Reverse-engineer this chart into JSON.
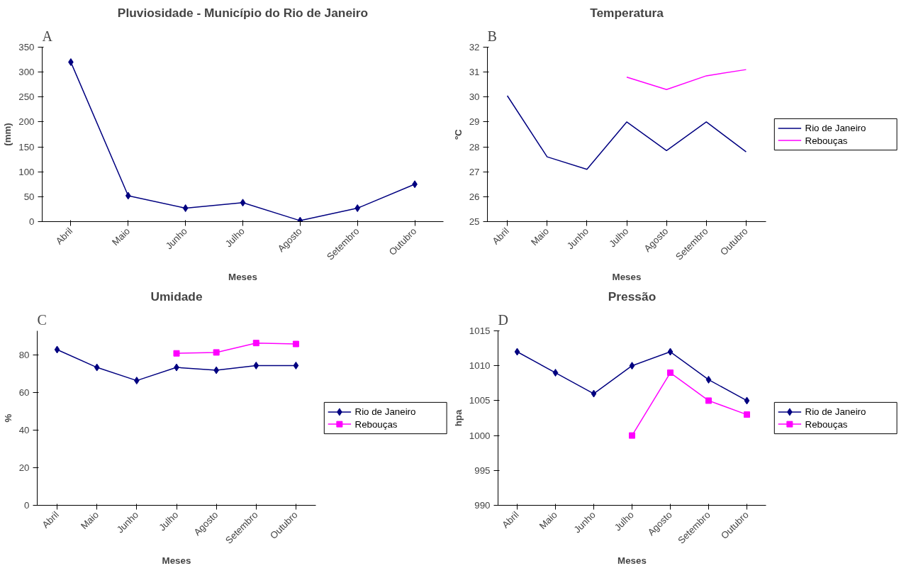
{
  "chart_data": [
    {
      "type": "line",
      "title": "Pluviosidade - Município do Rio de Janeiro",
      "annotations": [
        "A"
      ],
      "xlabel": "Meses",
      "ylabel": "(mm)",
      "categories": [
        "Abril",
        "Maio",
        "Junho",
        "Julho",
        "Agosto",
        "Setembro",
        "Outubro"
      ],
      "ylim": [
        0,
        350
      ],
      "yticks": [
        0,
        50,
        100,
        150,
        200,
        250,
        300,
        350
      ],
      "grid": false,
      "legend": false,
      "marker": "diamond",
      "series": [
        {
          "color": "#000080",
          "values": [
            320,
            52,
            27,
            38,
            2,
            27,
            75
          ]
        }
      ]
    },
    {
      "type": "line",
      "title": "Temperatura",
      "annotations": [
        "B"
      ],
      "xlabel": "Meses",
      "ylabel": "ºC",
      "categories": [
        "Abril",
        "Maio",
        "Junho",
        "Julho",
        "Agosto",
        "Setembro",
        "Outubro"
      ],
      "ylim": [
        25,
        32
      ],
      "yticks": [
        25,
        26,
        27,
        28,
        29,
        30,
        31,
        32
      ],
      "grid": false,
      "legend": "right",
      "marker": "none",
      "series": [
        {
          "name": "Rio de Janeiro",
          "color": "#000080",
          "values": [
            30.05,
            27.6,
            27.1,
            29.0,
            27.85,
            29.0,
            27.8
          ]
        },
        {
          "name": "Rebouças",
          "color": "#ff00ff",
          "values": [
            null,
            null,
            null,
            30.8,
            30.3,
            30.85,
            31.1
          ]
        }
      ]
    },
    {
      "type": "line",
      "title": "Umidade",
      "annotations": [
        "C"
      ],
      "xlabel": "Meses",
      "ylabel": "%",
      "categories": [
        "Abril",
        "Maio",
        "Junho",
        "Julho",
        "Agosto",
        "Setembro",
        "Outubro"
      ],
      "ylim": [
        0,
        93
      ],
      "yticks": [
        0,
        20,
        40,
        60,
        80
      ],
      "grid": false,
      "legend": "right",
      "series": [
        {
          "name": "Rio de Janeiro",
          "color": "#000080",
          "marker": "diamond",
          "values": [
            83,
            73.5,
            66.5,
            73.5,
            72,
            74.5,
            74.5
          ]
        },
        {
          "name": "Rebouças",
          "color": "#ff00ff",
          "marker": "square",
          "values": [
            null,
            null,
            null,
            81,
            81.5,
            86.5,
            86
          ]
        }
      ]
    },
    {
      "type": "line",
      "title": "Pressão",
      "annotations": [
        "D"
      ],
      "xlabel": "Meses",
      "ylabel": "hpa",
      "categories": [
        "Abril",
        "Maio",
        "Junho",
        "Julho",
        "Agosto",
        "Setembro",
        "Outubro"
      ],
      "ylim": [
        990,
        1015
      ],
      "yticks": [
        990,
        995,
        1000,
        1005,
        1010,
        1015
      ],
      "grid": false,
      "legend": "right",
      "series": [
        {
          "name": "Rio de Janeiro",
          "color": "#000080",
          "marker": "diamond",
          "values": [
            1012,
            1009,
            1006,
            1010,
            1012,
            1008,
            1005
          ]
        },
        {
          "name": "Rebouças",
          "color": "#ff00ff",
          "marker": "square",
          "values": [
            null,
            null,
            null,
            1000,
            1009,
            1005,
            1003
          ]
        }
      ]
    }
  ]
}
